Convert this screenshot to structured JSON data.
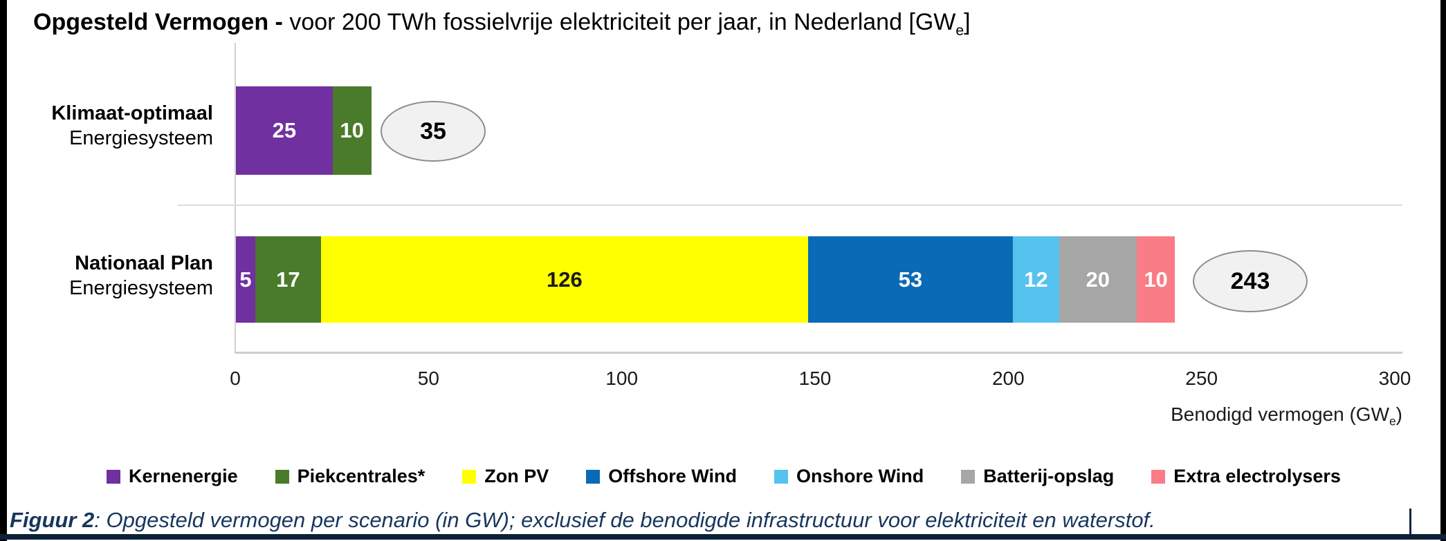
{
  "title": {
    "bold": "Opgesteld Vermogen - ",
    "regular": "voor 200 TWh fossielvrije elektriciteit per jaar, in Nederland [GW",
    "subscript": "e",
    "close": "]"
  },
  "axis": {
    "xlabel_main": "Benodigd vermogen (GW",
    "xlabel_sub": "e",
    "xlabel_close": ")"
  },
  "caption": {
    "label": "Figuur 2",
    "text": ": Opgesteld vermogen per scenario (in GW); exclusief de benodigde infrastructuur voor elektriciteit en waterstof."
  },
  "chart_data": {
    "type": "bar",
    "variant": "horizontal-stacked",
    "title": "Opgesteld Vermogen - voor 200 TWh fossielvrije elektriciteit per jaar, in Nederland [GWe]",
    "xlabel": "Benodigd vermogen (GWe)",
    "xlim": [
      0,
      300
    ],
    "x_ticks": [
      "0",
      "50",
      "100",
      "150",
      "200",
      "250",
      "300"
    ],
    "grid": false,
    "legend_position": "bottom",
    "categories": [
      {
        "line1": "Klimaat-optimaal",
        "line2": "Energiesysteem",
        "total": "35"
      },
      {
        "line1": "Nationaal Plan",
        "line2": "Energiesysteem",
        "total": "243"
      }
    ],
    "series": [
      {
        "name": "Kernenergie",
        "color": "#7030A0",
        "label_color": "#FFFFFF",
        "values": [
          25,
          5
        ]
      },
      {
        "name": "Piekcentrales*",
        "color": "#4A7B2B",
        "label_color": "#FFFFFF",
        "values": [
          10,
          17
        ]
      },
      {
        "name": "Zon PV",
        "color": "#FFFF00",
        "label_color": "#1A1A1A",
        "values": [
          null,
          126
        ]
      },
      {
        "name": "Offshore Wind",
        "color": "#0B6AB5",
        "label_color": "#FFFFFF",
        "values": [
          null,
          53
        ]
      },
      {
        "name": "Onshore Wind",
        "color": "#56C2EE",
        "label_color": "#FFFFFF",
        "values": [
          null,
          12
        ]
      },
      {
        "name": "Batterij-opslag",
        "color": "#A6A6A6",
        "label_color": "#FFFFFF",
        "values": [
          null,
          20
        ]
      },
      {
        "name": "Extra electrolysers",
        "color": "#F97C86",
        "label_color": "#FFFFFF",
        "values": [
          null,
          10
        ]
      }
    ]
  }
}
